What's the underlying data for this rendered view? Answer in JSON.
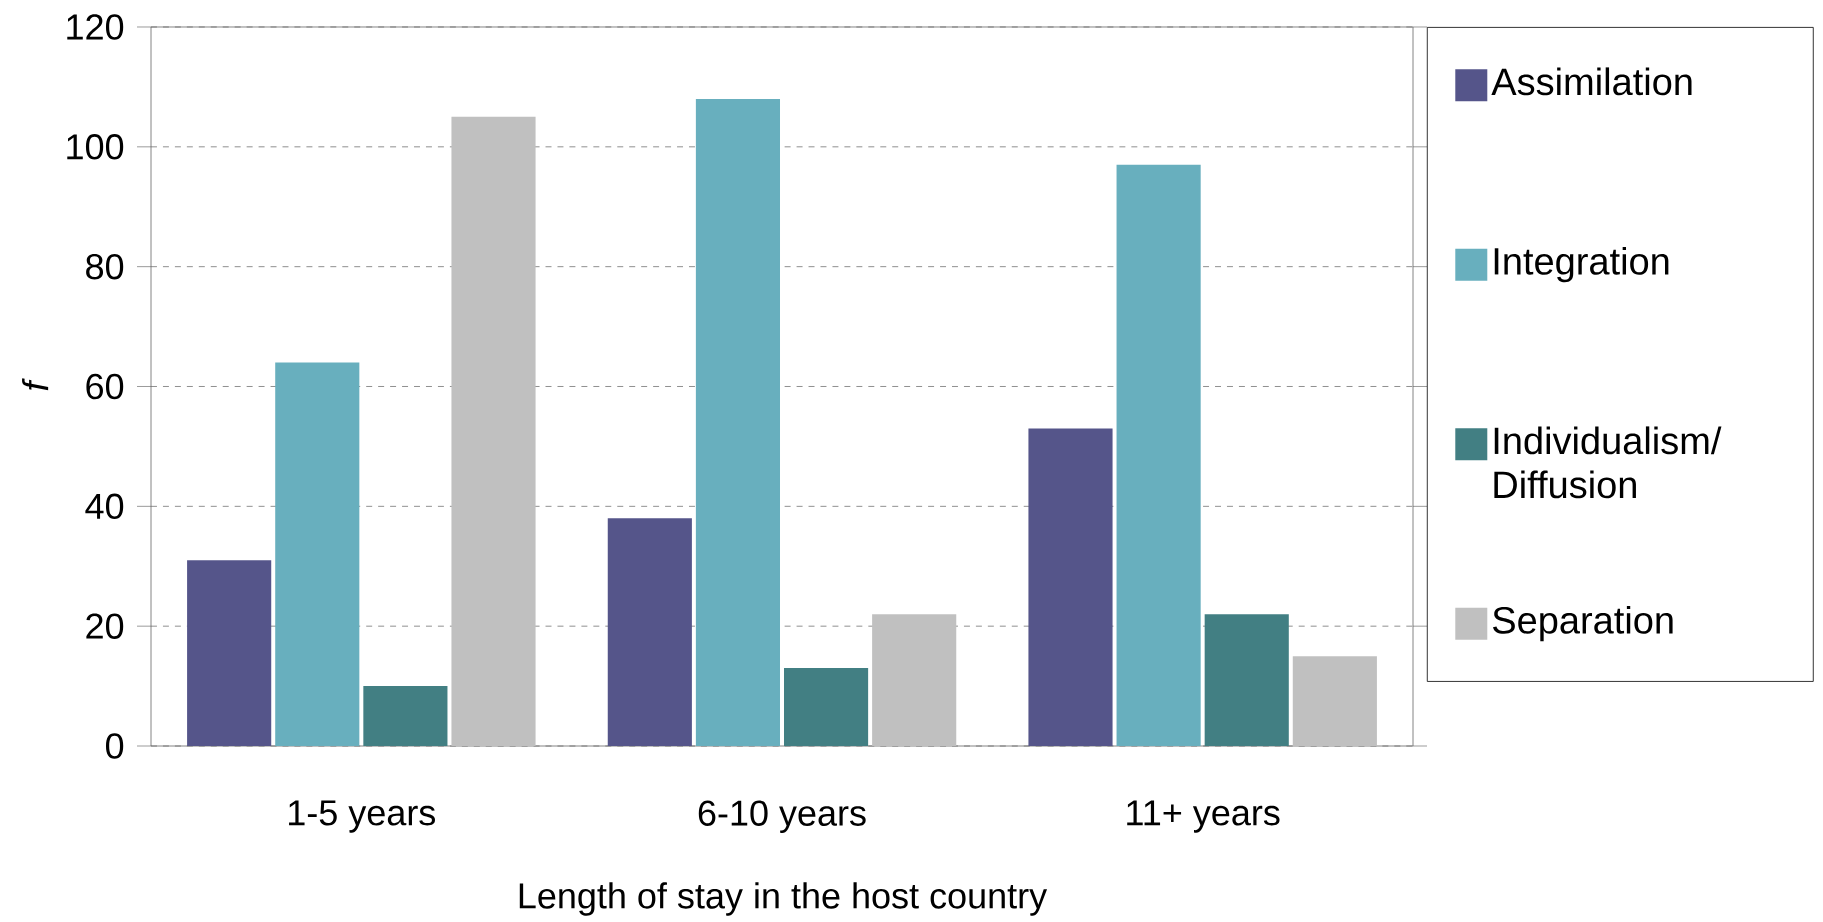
{
  "chart_data": {
    "type": "bar",
    "xlabel": "Length of stay in the host country",
    "ylabel": "f",
    "categories": [
      "1-5 years",
      "6-10 years",
      "11+ years"
    ],
    "series": [
      {
        "name": "Assimilation",
        "color": "#55558a",
        "values": [
          31,
          38,
          53
        ]
      },
      {
        "name": "Integration",
        "color": "#68afbe",
        "values": [
          64,
          108,
          97
        ]
      },
      {
        "name": "Individualism/ Diffusion",
        "color": "#427f83",
        "values": [
          10,
          13,
          22
        ]
      },
      {
        "name": "Separation",
        "color": "#c0c0c0",
        "values": [
          105,
          22,
          15
        ]
      }
    ],
    "ylim": [
      0,
      120
    ],
    "yticks": [
      0,
      20,
      40,
      60,
      80,
      100,
      120
    ],
    "grid": "y",
    "legend": "right"
  }
}
